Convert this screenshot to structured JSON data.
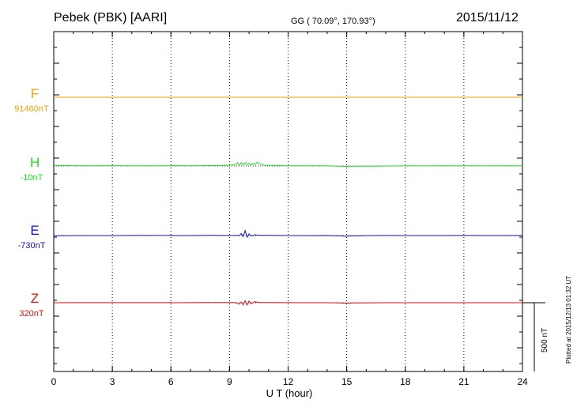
{
  "header": {
    "station": "Pebek (PBK)  [AARI]",
    "coords": "GG ( 70.09°, 170.93°)",
    "date": "2015/11/12"
  },
  "footer_note": "Plotted at 2015/12/13 01:32 UT",
  "chart_data": {
    "type": "line",
    "xlabel": "U T (hour)",
    "xlim": [
      0,
      24
    ],
    "x_ticks": [
      0,
      3,
      6,
      9,
      12,
      15,
      18,
      21,
      24
    ],
    "grid": true,
    "scale_bar": {
      "label": "500 nT",
      "value": 500
    },
    "series": [
      {
        "name": "F",
        "baseline_label": "91460nT",
        "color": "#f0a000",
        "baseline_color": "#7a5a00",
        "points": [
          [
            0,
            0
          ],
          [
            24,
            0
          ]
        ]
      },
      {
        "name": "H",
        "baseline_label": "-10nT",
        "color": "#22e022",
        "baseline_color": "#444444",
        "points": [
          [
            0,
            -8
          ],
          [
            1,
            -5
          ],
          [
            2,
            -4
          ],
          [
            3,
            -5
          ],
          [
            4,
            -3
          ],
          [
            5,
            -4
          ],
          [
            5.9,
            -4
          ],
          [
            6,
            -1
          ],
          [
            6.1,
            -6
          ],
          [
            7,
            -4
          ],
          [
            8,
            -6
          ],
          [
            8.6,
            -8
          ],
          [
            9,
            -12
          ],
          [
            9.3,
            -20
          ],
          [
            9.4,
            -48
          ],
          [
            9.5,
            -10
          ],
          [
            9.6,
            -50
          ],
          [
            9.7,
            -15
          ],
          [
            9.8,
            -52
          ],
          [
            9.9,
            -18
          ],
          [
            10,
            -40
          ],
          [
            10.1,
            -10
          ],
          [
            10.2,
            -38
          ],
          [
            10.3,
            -20
          ],
          [
            10.4,
            -52
          ],
          [
            10.6,
            -25
          ],
          [
            10.8,
            -12
          ],
          [
            11.2,
            -8
          ],
          [
            11.6,
            -6
          ],
          [
            12,
            -4
          ],
          [
            12.6,
            -3
          ],
          [
            13.4,
            -2
          ],
          [
            14,
            -2
          ],
          [
            14.5,
            2
          ],
          [
            15,
            6
          ],
          [
            15.5,
            4
          ],
          [
            16,
            3
          ],
          [
            16.5,
            2
          ],
          [
            17,
            0
          ],
          [
            18,
            -2
          ],
          [
            19,
            -1
          ],
          [
            20,
            -2
          ],
          [
            21,
            -2
          ],
          [
            21.8,
            -3
          ],
          [
            22.2,
            -1
          ],
          [
            22.6,
            -2
          ],
          [
            23,
            -2
          ],
          [
            24,
            -3
          ]
        ]
      },
      {
        "name": "E",
        "baseline_label": "-730nT",
        "color": "#1010d8",
        "baseline_color": "#444444",
        "points": [
          [
            0,
            2
          ],
          [
            1,
            1
          ],
          [
            2,
            0
          ],
          [
            3,
            1
          ],
          [
            4,
            -1
          ],
          [
            5,
            -1
          ],
          [
            5.9,
            -2
          ],
          [
            6,
            -5
          ],
          [
            6.1,
            1
          ],
          [
            7,
            0
          ],
          [
            8,
            -2
          ],
          [
            9,
            0
          ],
          [
            9.4,
            -4
          ],
          [
            9.5,
            3
          ],
          [
            9.6,
            -30
          ],
          [
            9.7,
            15
          ],
          [
            9.8,
            -70
          ],
          [
            9.9,
            22
          ],
          [
            10,
            -25
          ],
          [
            10.1,
            8
          ],
          [
            10.3,
            -10
          ],
          [
            10.5,
            -2
          ],
          [
            11,
            -2
          ],
          [
            12,
            0
          ],
          [
            13,
            1
          ],
          [
            14,
            0
          ],
          [
            14.6,
            5
          ],
          [
            15,
            10
          ],
          [
            15.3,
            2
          ],
          [
            15.6,
            6
          ],
          [
            16,
            1
          ],
          [
            17,
            -1
          ],
          [
            18,
            0
          ],
          [
            19,
            0
          ],
          [
            20,
            0
          ],
          [
            21,
            -1
          ],
          [
            22,
            0
          ],
          [
            23,
            0
          ],
          [
            24,
            -1
          ]
        ]
      },
      {
        "name": "Z",
        "baseline_label": "320nT",
        "color": "#e01010",
        "baseline_color": "#444444",
        "points": [
          [
            0,
            0
          ],
          [
            1,
            -1
          ],
          [
            2,
            -1
          ],
          [
            3,
            -1
          ],
          [
            4,
            -1
          ],
          [
            5,
            -1
          ],
          [
            5.9,
            -1
          ],
          [
            6,
            -5
          ],
          [
            6.1,
            0
          ],
          [
            7,
            -1
          ],
          [
            7.8,
            -4
          ],
          [
            8.5,
            -2
          ],
          [
            9,
            -2
          ],
          [
            9.3,
            -2
          ],
          [
            9.5,
            20
          ],
          [
            9.6,
            -10
          ],
          [
            9.7,
            30
          ],
          [
            9.8,
            -28
          ],
          [
            9.9,
            35
          ],
          [
            10,
            -25
          ],
          [
            10.1,
            15
          ],
          [
            10.3,
            -15
          ],
          [
            10.5,
            -5
          ],
          [
            11,
            -3
          ],
          [
            12,
            -1
          ],
          [
            13,
            0
          ],
          [
            14,
            0
          ],
          [
            14.6,
            2
          ],
          [
            15,
            8
          ],
          [
            15.4,
            3
          ],
          [
            15.8,
            2
          ],
          [
            16.3,
            1
          ],
          [
            17,
            0
          ],
          [
            18,
            0
          ],
          [
            20,
            0
          ],
          [
            22,
            0
          ],
          [
            24,
            0
          ]
        ]
      }
    ]
  }
}
